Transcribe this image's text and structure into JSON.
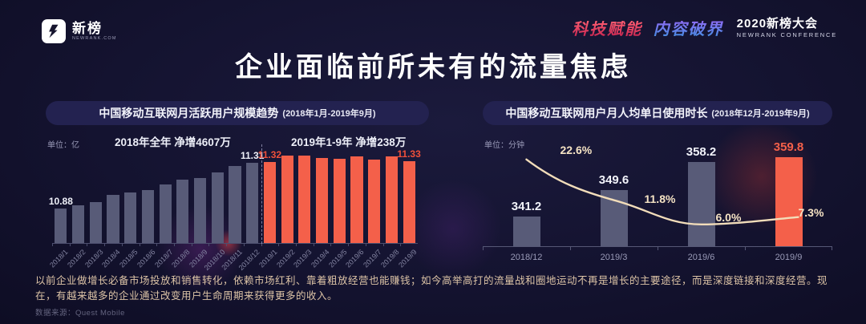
{
  "header": {
    "logo_cn": "新榜",
    "logo_en": "NEWRANK.COM",
    "slogan_part1": "科技赋能",
    "slogan_part2": "内容破界",
    "conference_title": "2020新榜大会",
    "conference_subtitle": "NEWRANK CONFERENCE"
  },
  "title": "企业面临前所未有的流量焦虑",
  "left_panel": {
    "header": "中国移动互联网月活跃用户规模趋势",
    "header_range": "(2018年1月-2019年9月)",
    "unit": "单位：亿",
    "annotation_2018": "2018年全年 净增4607万",
    "annotation_2019": "2019年1-9年 净增238万"
  },
  "right_panel": {
    "header": "中国移动互联网用户月人均单日使用时长",
    "header_range": "(2018年12月-2019年9月)",
    "unit": "单位：分钟"
  },
  "footer": {
    "paragraph": "以前企业做增长必备市场投放和销售转化，依赖市场红利、靠着粗放经营也能赚钱；如今高举高打的流量战和圈地运动不再是增长的主要途径，而是深度链接和深度经营。现在，有越来越多的企业通过改变用户生命周期来获得更多的收入。",
    "source": "数据来源：Quest Mobile"
  },
  "colors": {
    "background": "#14132f",
    "bar_gray": "#585b78",
    "bar_orange": "#f4604a",
    "red_value_label": "#f0503a",
    "trend_line_cream": "#f2ddba",
    "percent_label_cream": "#f5e3c4",
    "paragraph_tan": "#dcc3a6",
    "axis_text_gray": "#8485a2"
  },
  "chart_data": [
    {
      "id": "mau-trend",
      "type": "bar",
      "title": "中国移动互联网月活跃用户规模趋势",
      "subtitle": "(2018年1月-2019年9月)",
      "unit": "亿",
      "categories": [
        "2018/1",
        "2018/2",
        "2018/3",
        "2018/4",
        "2018/5",
        "2018/6",
        "2018/7",
        "2018/8",
        "2018/9",
        "2018/10",
        "2018/11",
        "2018/12",
        "2019/1",
        "2019/2",
        "2019/3",
        "2019/4",
        "2019/5",
        "2019/6",
        "2019/7",
        "2019/8",
        "2019/9"
      ],
      "values": [
        10.88,
        10.91,
        10.94,
        11.01,
        11.03,
        11.05,
        11.11,
        11.15,
        11.17,
        11.22,
        11.28,
        11.31,
        11.32,
        11.38,
        11.38,
        11.36,
        11.35,
        11.37,
        11.34,
        11.37,
        11.33
      ],
      "point_labels": {
        "0": "10.88",
        "11": "11.31",
        "12": "11.32",
        "20": "11.33"
      },
      "highlight_start_index": 12,
      "divider_after_index": 11,
      "ylim": [
        10.55,
        11.45
      ],
      "annotations": [
        "2018年全年 净增4607万",
        "2019年1-9年 净增238万"
      ],
      "legend": false,
      "grid": false
    },
    {
      "id": "daily-usage",
      "type": "bar+line",
      "title": "中国移动互联网用户月人均单日使用时长",
      "subtitle": "(2018年12月-2019年9月)",
      "unit": "分钟",
      "categories": [
        "2018/12",
        "2019/3",
        "2019/6",
        "2019/9"
      ],
      "series": [
        {
          "name": "月人均单日使用时长",
          "type": "bar",
          "values": [
            341.2,
            349.6,
            358.2,
            359.8
          ],
          "highlight_index": 3
        },
        {
          "name": "增长率",
          "type": "line",
          "values_percent": [
            22.6,
            11.8,
            6.0,
            7.3
          ],
          "labels": [
            "22.6%",
            "11.8%",
            "6.0%",
            "7.3%"
          ]
        }
      ],
      "ylim": [
        332,
        362
      ],
      "legend": false,
      "grid": false
    }
  ]
}
